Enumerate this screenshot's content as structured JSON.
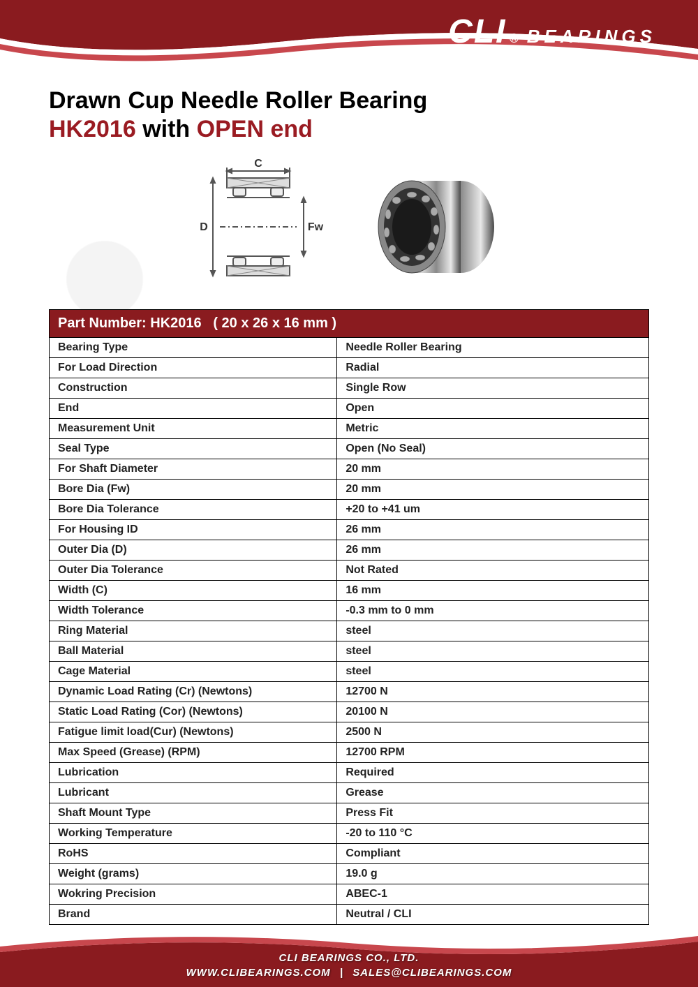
{
  "brand": {
    "logo_main": "CLI",
    "logo_reg": "®",
    "logo_sub": "BEARINGS",
    "primary_color": "#8a1b1f",
    "header_dark": "#6b1418"
  },
  "title": {
    "line1": "Drawn Cup Needle Roller Bearing",
    "part": "HK2016",
    "mid": " with ",
    "variant": "OPEN end"
  },
  "diagram": {
    "label_C": "C",
    "label_D": "D",
    "label_Fw": "Fw"
  },
  "table": {
    "header_prefix": "Part Number: ",
    "header_part": "HK2016",
    "header_dims": "( 20 x 26 x 16 mm )",
    "rows": [
      {
        "label": "Bearing Type",
        "value": "Needle Roller Bearing"
      },
      {
        "label": "For Load Direction",
        "value": "Radial"
      },
      {
        "label": "Construction",
        "value": "Single Row"
      },
      {
        "label": "End",
        "value": "Open"
      },
      {
        "label": "Measurement Unit",
        "value": "Metric"
      },
      {
        "label": "Seal Type",
        "value": "Open (No Seal)"
      },
      {
        "label": "For Shaft Diameter",
        "value": "20 mm"
      },
      {
        "label": "Bore Dia (Fw)",
        "value": "20 mm"
      },
      {
        "label": "Bore Dia Tolerance",
        "value": "+20 to +41 um"
      },
      {
        "label": "For Housing ID",
        "value": "26 mm"
      },
      {
        "label": "Outer Dia (D)",
        "value": "26 mm"
      },
      {
        "label": "Outer Dia Tolerance",
        "value": "Not Rated"
      },
      {
        "label": "Width (C)",
        "value": "16 mm"
      },
      {
        "label": "Width Tolerance",
        "value": "-0.3 mm to 0 mm"
      },
      {
        "label": "Ring Material",
        "value": "steel"
      },
      {
        "label": "Ball Material",
        "value": "steel"
      },
      {
        "label": "Cage Material",
        "value": "steel"
      },
      {
        "label": "Dynamic Load Rating (Cr) (Newtons)",
        "value": "12700 N"
      },
      {
        "label": "Static Load Rating (Cor) (Newtons)",
        "value": "20100 N"
      },
      {
        "label": "Fatigue limit load(Cur) (Newtons)",
        "value": "2500 N"
      },
      {
        "label": "Max Speed (Grease) (RPM)",
        "value": "12700 RPM"
      },
      {
        "label": "Lubrication",
        "value": "Required"
      },
      {
        "label": "Lubricant",
        "value": "Grease"
      },
      {
        "label": "Shaft Mount Type",
        "value": "Press Fit"
      },
      {
        "label": "Working Temperature",
        "value": "-20 to 110 °C"
      },
      {
        "label": "RoHS",
        "value": "Compliant"
      },
      {
        "label": "Weight (grams)",
        "value": "19.0 g"
      },
      {
        "label": "Wokring Precision",
        "value": "ABEC-1"
      },
      {
        "label": "Brand",
        "value": "Neutral / CLI"
      }
    ]
  },
  "footer": {
    "company": "CLI BEARINGS CO., LTD.",
    "website": "WWW.CLIBEARINGS.COM",
    "separator": "|",
    "email": "SALES@CLIBEARINGS.COM"
  }
}
